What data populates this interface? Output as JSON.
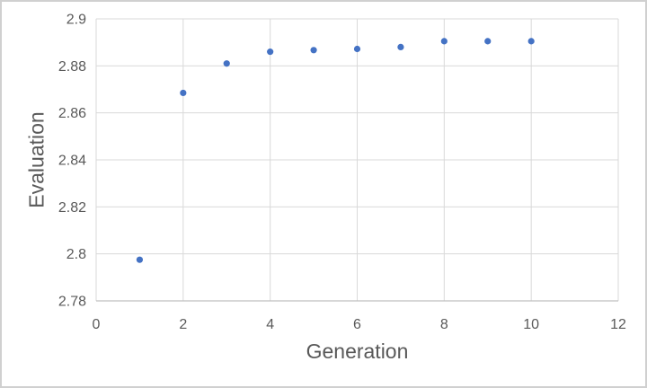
{
  "chart_data": {
    "type": "scatter",
    "title": "",
    "xlabel": "Generation",
    "ylabel": "Evaluation",
    "x": [
      1,
      2,
      3,
      4,
      5,
      6,
      7,
      8,
      9,
      10
    ],
    "y": [
      2.7975,
      2.8685,
      2.881,
      2.886,
      2.8867,
      2.8872,
      2.888,
      2.8905,
      2.8905,
      2.8905
    ],
    "xlim": [
      0,
      12
    ],
    "ylim": [
      2.78,
      2.9
    ],
    "x_ticks": [
      0,
      2,
      4,
      6,
      8,
      10,
      12
    ],
    "y_ticks": [
      2.78,
      2.8,
      2.82,
      2.84,
      2.86,
      2.88,
      2.9
    ],
    "x_tick_labels": [
      "0",
      "2",
      "4",
      "6",
      "8",
      "10",
      "12"
    ],
    "y_tick_labels": [
      "2.78",
      "2.8",
      "2.82",
      "2.84",
      "2.86",
      "2.88",
      "2.9"
    ],
    "grid": true,
    "legend": "none",
    "colors": {
      "marker": "#4472C4",
      "gridline": "#D9D9D9",
      "axis_line": "#BFBFBF",
      "text": "#595959",
      "frame_border": "#D0D0D0",
      "background": "#FFFFFF"
    }
  }
}
